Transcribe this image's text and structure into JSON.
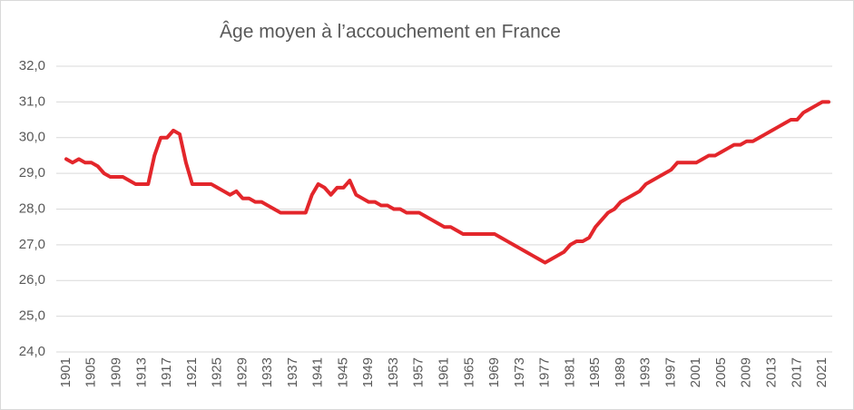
{
  "chart_data": {
    "type": "line",
    "title": "Âge moyen à l’accouchement en France",
    "categories": [
      "1901",
      null,
      null,
      null,
      "1905",
      null,
      null,
      null,
      "1909",
      null,
      null,
      null,
      "1913",
      null,
      null,
      null,
      "1917",
      null,
      null,
      null,
      "1921",
      null,
      null,
      null,
      "1925",
      null,
      null,
      null,
      "1929",
      null,
      null,
      null,
      "1933",
      null,
      null,
      null,
      "1937",
      null,
      null,
      null,
      "1941",
      null,
      null,
      null,
      "1945",
      null,
      null,
      null,
      "1949",
      null,
      null,
      null,
      "1953",
      null,
      null,
      null,
      "1957",
      null,
      null,
      null,
      "1961",
      null,
      null,
      null,
      "1965",
      null,
      null,
      null,
      "1969",
      null,
      null,
      null,
      "1973",
      null,
      null,
      null,
      "1977",
      null,
      null,
      null,
      "1981",
      null,
      null,
      null,
      "1985",
      null,
      null,
      null,
      "1989",
      null,
      null,
      null,
      "1993",
      null,
      null,
      null,
      "1997",
      null,
      null,
      null,
      "2001",
      null,
      null,
      null,
      "2005",
      null,
      null,
      null,
      "2009",
      null,
      null,
      null,
      "2013",
      null,
      null,
      null,
      "2017",
      null,
      null,
      null,
      "2021",
      null
    ],
    "values": [
      29.4,
      29.3,
      29.4,
      29.3,
      29.3,
      29.2,
      29.0,
      28.9,
      28.9,
      28.9,
      28.8,
      28.7,
      28.7,
      28.7,
      29.5,
      30.0,
      30.0,
      30.2,
      30.1,
      29.3,
      28.7,
      28.7,
      28.7,
      28.7,
      28.6,
      28.5,
      28.4,
      28.5,
      28.3,
      28.3,
      28.2,
      28.2,
      28.1,
      28.0,
      27.9,
      27.9,
      27.9,
      27.9,
      27.9,
      28.4,
      28.7,
      28.6,
      28.4,
      28.6,
      28.6,
      28.8,
      28.4,
      28.3,
      28.2,
      28.2,
      28.1,
      28.1,
      28.0,
      28.0,
      27.9,
      27.9,
      27.9,
      27.8,
      27.7,
      27.6,
      27.5,
      27.5,
      27.4,
      27.3,
      27.3,
      27.3,
      27.3,
      27.3,
      27.3,
      27.2,
      27.1,
      27.0,
      26.9,
      26.8,
      26.7,
      26.6,
      26.5,
      26.6,
      26.7,
      26.8,
      27.0,
      27.1,
      27.1,
      27.2,
      27.5,
      27.7,
      27.9,
      28.0,
      28.2,
      28.3,
      28.4,
      28.5,
      28.7,
      28.8,
      28.9,
      29.0,
      29.1,
      29.3,
      29.3,
      29.3,
      29.3,
      29.4,
      29.5,
      29.5,
      29.6,
      29.7,
      29.8,
      29.8,
      29.9,
      29.9,
      30.0,
      30.1,
      30.2,
      30.3,
      30.4,
      30.5,
      30.5,
      30.7,
      30.8,
      30.9,
      31.0,
      31.0
    ],
    "color": "#e3262b",
    "ylim": [
      24,
      32
    ],
    "yticks": [
      {
        "value": 24,
        "label": "24,0"
      },
      {
        "value": 25,
        "label": "25,0"
      },
      {
        "value": 26,
        "label": "26,0"
      },
      {
        "value": 27,
        "label": "27,0"
      },
      {
        "value": 28,
        "label": "28,0"
      },
      {
        "value": 29,
        "label": "29,0"
      },
      {
        "value": 30,
        "label": "30,0"
      },
      {
        "value": 31,
        "label": "31,0"
      },
      {
        "value": 32,
        "label": "32,0"
      }
    ],
    "grid": true
  }
}
